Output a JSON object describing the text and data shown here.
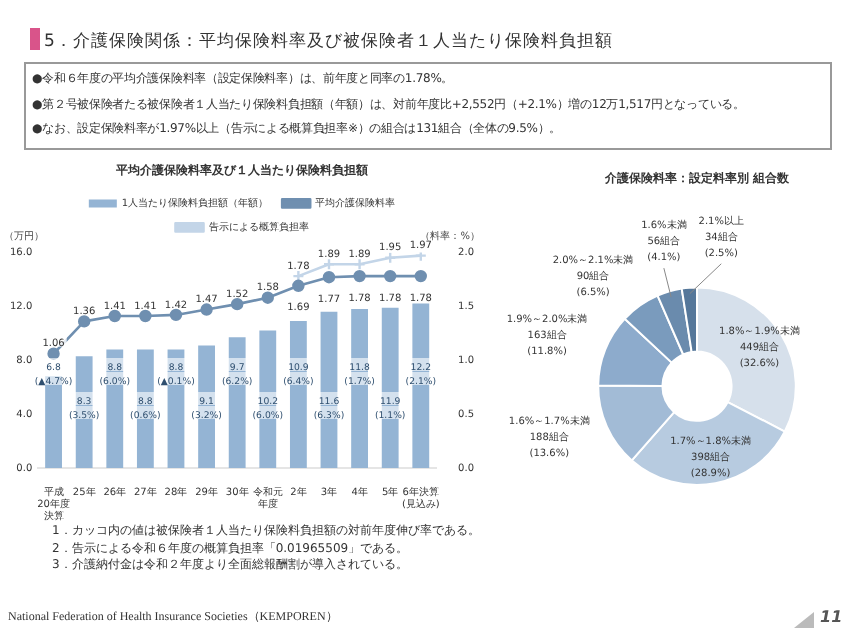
{
  "chart_data": [
    {
      "type": "bar",
      "title": "平均介護保険料率及び１人当たり保険料負担額",
      "ylabel": "（万円）",
      "y2label": "（料率：%）",
      "legend": "top",
      "categories": [
        "平成20年度決算",
        "25年",
        "26年",
        "27年",
        "28年",
        "29年",
        "30年",
        "令和元年度",
        "2年",
        "3年",
        "4年",
        "5年",
        "6年決算(見込み)"
      ],
      "series": [
        {
          "name": "1人当たり保険料負担額（年額）",
          "type": "bar",
          "color": "#94b4d4",
          "values": [
            6.8,
            8.3,
            8.8,
            8.8,
            8.8,
            9.1,
            9.7,
            10.2,
            10.9,
            11.6,
            11.8,
            11.9,
            12.2
          ],
          "value_labels": [
            "6.8\n(▲4.7%)",
            "8.3\n(3.5%)",
            "8.8\n(6.0%)",
            "8.8\n(0.6%)",
            "8.8\n(▲0.1%)",
            "9.1\n(3.2%)",
            "9.7\n(6.2%)",
            "10.2\n(6.0%)",
            "10.9\n(6.4%)",
            "11.6\n(6.3%)",
            "11.8\n(1.7%)",
            "11.9\n(1.1%)",
            "12.2\n(2.1%)"
          ]
        },
        {
          "name": "平均介護保険料率",
          "type": "line",
          "axis": "y2",
          "marker": "circle",
          "color": "#6f8fb0",
          "values": [
            1.06,
            1.36,
            1.41,
            1.41,
            1.42,
            1.47,
            1.52,
            1.58,
            1.69,
            1.77,
            1.78,
            1.78,
            1.78
          ],
          "value_labels": [
            "1.06",
            "1.36",
            "1.41",
            "1.41",
            "1.42",
            "1.47",
            "1.52",
            "1.58",
            "1.69",
            "1.77",
            "1.78",
            "1.78",
            "1.78"
          ]
        },
        {
          "name": "告示による概算負担率",
          "type": "line",
          "axis": "y2",
          "marker": "cross",
          "color": "#c3d5e8",
          "values": [
            null,
            null,
            null,
            null,
            null,
            null,
            null,
            null,
            1.78,
            1.89,
            1.89,
            1.95,
            1.97
          ],
          "value_labels": [
            null,
            null,
            null,
            null,
            null,
            null,
            null,
            null,
            "1.78",
            "1.89",
            "1.89",
            "1.95",
            "1.97"
          ]
        }
      ],
      "ylim": [
        0,
        16
      ],
      "yticks": [
        {
          "value": 0,
          "label": "0.0"
        },
        {
          "value": 4,
          "label": "4.0"
        },
        {
          "value": 8,
          "label": "8.0"
        },
        {
          "value": 12,
          "label": "12.0"
        },
        {
          "value": 16,
          "label": "16.0"
        }
      ],
      "y2lim": [
        0,
        2
      ],
      "y2ticks": [
        {
          "value": 0,
          "label": "0.0"
        },
        0.5,
        {
          "value": 1,
          "label": "1.0"
        },
        1.5,
        {
          "value": 2,
          "label": "2.0"
        }
      ],
      "annotations": [
        "5．介護保険関係：平均保険料率及び被保険者１人当たり保険料負担額",
        "●令和６年度の平均介護保険料率（設定保険料率）は、前年度と同率の1.78%。",
        "●第２号被保険者たる被保険者１人当たり保険料負担額（年額）は、対前年度比+2,552円（+2.1%）増の12万1,517円となっている。",
        "●なお、設定保険料率が1.97%以上（告示による概算負担率※）の組合は131組合（全体の9.5%）。",
        "1．カッコ内の値は被保険者１人当たり保険料負担額の対前年度伸び率である。",
        "2．告示による令和６年度の概算負担率「0.01965509」である。",
        "3．介護納付金は令和２年度より全面総報酬割が導入されている。",
        "National Federation of Health Insurance Societies（KEMPOREN）",
        "11"
      ]
    },
    {
      "type": "donut",
      "title": "介護保険料率：設定料率別 組合数",
      "categories": [
        "1.8%～1.9%未満",
        "1.7%～1.8%未満",
        "1.6%～1.7%未満",
        "1.9%～2.0%未満",
        "2.0%～2.1%未満",
        "1.6%未満",
        "2.1%以上"
      ],
      "values": [
        449,
        398,
        188,
        163,
        90,
        56,
        34
      ],
      "colors": [
        "#d6e0eb",
        "#b7cbe0",
        "#a2bbd6",
        "#8dabcc",
        "#7a9bbd",
        "#6a8bad",
        "#55779a"
      ],
      "value_labels": [
        "449組合\n(32.6%)",
        "398組合\n(28.9%)",
        "188組合\n(13.6%)",
        "163組合\n(11.8%)",
        "90組合\n(6.5%)",
        "56組合\n(4.1%)",
        "34組合\n(2.5%)"
      ]
    }
  ]
}
